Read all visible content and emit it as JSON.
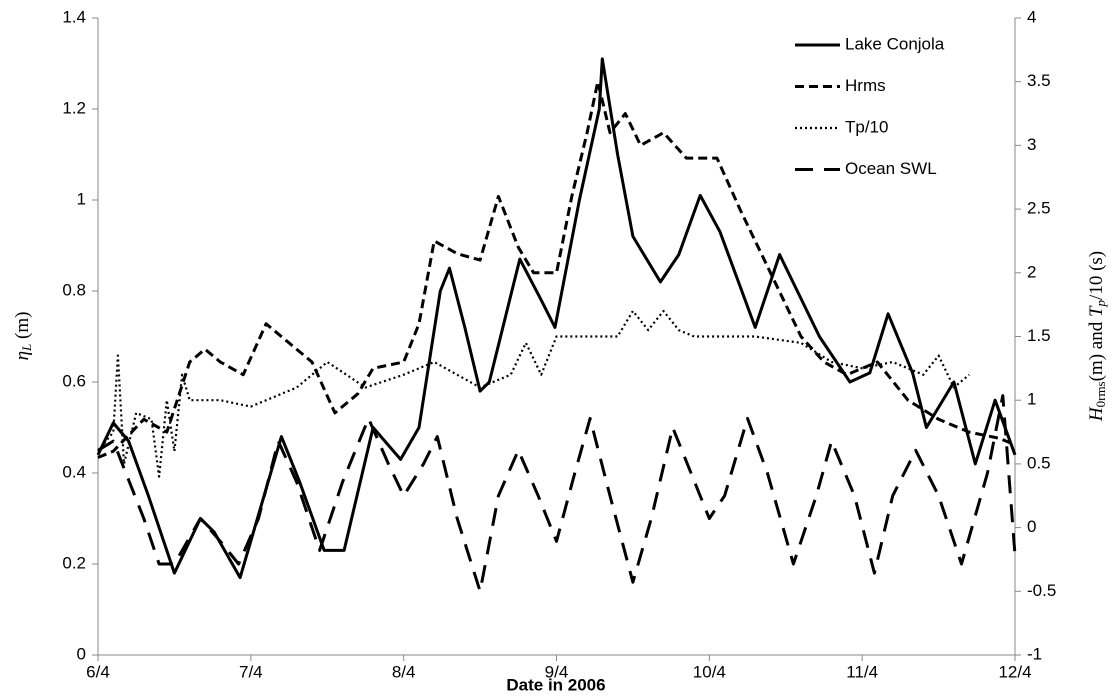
{
  "chart_data": {
    "type": "line",
    "xlabel": "Date in 2006",
    "ylabel": [
      "η",
      "L",
      " (m)"
    ],
    "y2label": [
      "H",
      "0rms",
      "(m) and ",
      "T",
      "p",
      "/10 (s)"
    ],
    "xlim": [
      0,
      6
    ],
    "xticks": [
      {
        "value": 0,
        "label": "6/4"
      },
      {
        "value": 1,
        "label": "7/4"
      },
      {
        "value": 2,
        "label": "8/4"
      },
      {
        "value": 3,
        "label": "9/4"
      },
      {
        "value": 4,
        "label": "10/4"
      },
      {
        "value": 5,
        "label": "11/4"
      },
      {
        "value": 6,
        "label": "12/4"
      }
    ],
    "ylim": [
      0,
      1.4
    ],
    "yticks": [
      0,
      0.2,
      0.4,
      0.6,
      0.8,
      1,
      1.2,
      1.4
    ],
    "y2lim": [
      -1,
      4
    ],
    "y2ticks": [
      -1,
      -0.5,
      0,
      0.5,
      1,
      1.5,
      2,
      2.5,
      3,
      3.5,
      4
    ],
    "legend": "upper right",
    "series": [
      {
        "name": "Lake Conjola",
        "color": "#000000",
        "style": "solid",
        "x": [
          0,
          0.1,
          0.2,
          0.33,
          0.5,
          0.67,
          0.76,
          0.93,
          1.2,
          1.32,
          1.48,
          1.61,
          1.8,
          1.98,
          2.1,
          2.24,
          2.3,
          2.4,
          2.5,
          2.56,
          2.76,
          2.9,
          2.99,
          3.15,
          3.28,
          3.3,
          3.4,
          3.5,
          3.68,
          3.8,
          3.94,
          4.07,
          4.3,
          4.46,
          4.72,
          4.92,
          5.05,
          5.17,
          5.33,
          5.42,
          5.6,
          5.74,
          5.87,
          6.0
        ],
        "values": [
          0.44,
          0.51,
          0.47,
          0.35,
          0.18,
          0.3,
          0.27,
          0.17,
          0.48,
          0.38,
          0.23,
          0.23,
          0.5,
          0.43,
          0.5,
          0.8,
          0.85,
          0.72,
          0.58,
          0.6,
          0.87,
          0.78,
          0.72,
          1.0,
          1.2,
          1.31,
          1.1,
          0.92,
          0.82,
          0.88,
          1.01,
          0.93,
          0.72,
          0.88,
          0.7,
          0.6,
          0.62,
          0.75,
          0.62,
          0.5,
          0.6,
          0.42,
          0.56,
          0.44
        ]
      },
      {
        "name": "Hrms",
        "color": "#000000",
        "style": "dashed",
        "axis": "y2",
        "x": [
          0,
          0.1,
          0.3,
          0.45,
          0.6,
          0.7,
          0.8,
          0.95,
          1.1,
          1.25,
          1.4,
          1.55,
          1.7,
          1.8,
          2.0,
          2.1,
          2.2,
          2.35,
          2.5,
          2.62,
          2.75,
          2.85,
          3.0,
          3.1,
          3.2,
          3.27,
          3.35,
          3.45,
          3.55,
          3.7,
          3.85,
          4.05,
          4.2,
          4.4,
          4.6,
          4.75,
          4.9,
          5.1,
          5.3,
          5.5,
          5.7,
          5.9,
          6.0
        ],
        "values": [
          0.55,
          0.6,
          0.85,
          0.75,
          1.3,
          1.4,
          1.3,
          1.2,
          1.6,
          1.45,
          1.3,
          0.9,
          1.05,
          1.25,
          1.3,
          1.6,
          2.25,
          2.15,
          2.1,
          2.6,
          2.2,
          2.0,
          2.0,
          2.6,
          3.1,
          3.5,
          3.1,
          3.25,
          3.0,
          3.1,
          2.9,
          2.9,
          2.5,
          2.0,
          1.5,
          1.3,
          1.2,
          1.3,
          1.0,
          0.85,
          0.75,
          0.7,
          0.65
        ]
      },
      {
        "name": "Tp/10",
        "color": "#000000",
        "style": "dotted",
        "axis": "y2",
        "x": [
          0,
          0.1,
          0.13,
          0.17,
          0.25,
          0.35,
          0.4,
          0.45,
          0.5,
          0.55,
          0.6,
          0.8,
          1.0,
          1.3,
          1.5,
          1.75,
          2.0,
          2.2,
          2.5,
          2.7,
          2.8,
          2.9,
          3.0,
          3.4,
          3.5,
          3.6,
          3.7,
          3.8,
          3.9,
          4.3,
          4.6,
          4.8,
          5.0,
          5.2,
          5.4,
          5.5,
          5.6,
          5.7
        ],
        "values": [
          0.6,
          0.75,
          1.35,
          0.5,
          0.9,
          0.85,
          0.4,
          1.0,
          0.6,
          1.2,
          1.0,
          1.0,
          0.95,
          1.1,
          1.3,
          1.1,
          1.2,
          1.3,
          1.1,
          1.2,
          1.45,
          1.2,
          1.5,
          1.5,
          1.7,
          1.55,
          1.7,
          1.55,
          1.5,
          1.5,
          1.45,
          1.3,
          1.25,
          1.3,
          1.2,
          1.35,
          1.1,
          1.2
        ]
      },
      {
        "name": "Ocean SWL",
        "color": "#000000",
        "style": "long-dash",
        "x": [
          0,
          0.1,
          0.3,
          0.4,
          0.5,
          0.67,
          0.8,
          0.92,
          1.05,
          1.18,
          1.3,
          1.45,
          1.6,
          1.77,
          1.9,
          2.0,
          2.13,
          2.22,
          2.35,
          2.5,
          2.62,
          2.75,
          2.88,
          3.0,
          3.12,
          3.22,
          3.35,
          3.5,
          3.62,
          3.76,
          3.88,
          4.0,
          4.1,
          4.25,
          4.38,
          4.55,
          4.7,
          4.8,
          4.95,
          5.08,
          5.2,
          5.35,
          5.5,
          5.65,
          5.82,
          5.92,
          6.0
        ],
        "values": [
          0.45,
          0.47,
          0.3,
          0.2,
          0.2,
          0.3,
          0.25,
          0.2,
          0.3,
          0.47,
          0.38,
          0.23,
          0.38,
          0.52,
          0.42,
          0.35,
          0.42,
          0.48,
          0.3,
          0.14,
          0.35,
          0.45,
          0.35,
          0.25,
          0.4,
          0.52,
          0.35,
          0.16,
          0.3,
          0.5,
          0.4,
          0.3,
          0.35,
          0.52,
          0.4,
          0.2,
          0.35,
          0.47,
          0.35,
          0.18,
          0.35,
          0.45,
          0.35,
          0.2,
          0.4,
          0.57,
          0.22
        ]
      }
    ]
  }
}
